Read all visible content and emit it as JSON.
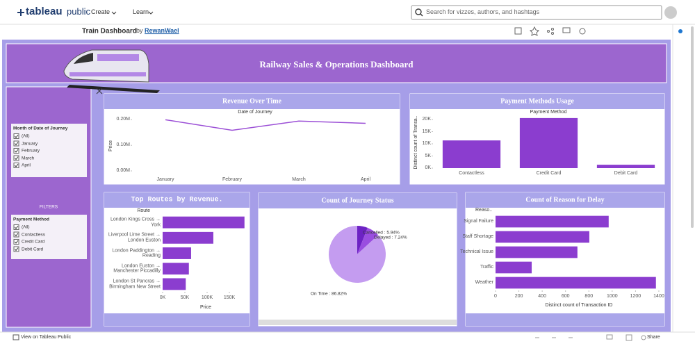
{
  "header": {
    "logo": "tableau",
    "logo_suffix": "public",
    "menu": [
      "Create",
      "Learn"
    ],
    "search_placeholder": "Search for vizzes, authors, and hashtags"
  },
  "viz": {
    "title": "Train Dashboard",
    "by": "by",
    "author": "RewanWael"
  },
  "dashboard": {
    "title": "Railway Sales & Operations Dashboard",
    "filters": {
      "label": "FILTERS",
      "groups": [
        {
          "title": "Month of Date of Journey",
          "items": [
            "(All)",
            "January",
            "February",
            "March",
            "April"
          ]
        },
        {
          "title": "Payment Method",
          "items": [
            "(All)",
            "Contactless",
            "Credit Card",
            "Debit Card"
          ]
        }
      ]
    }
  },
  "chart_data": [
    {
      "type": "line",
      "title": "Revenue Over Time",
      "x_label": "Date of Journey",
      "y_label": "Price",
      "color": "#9b4fd6",
      "categories": [
        "January",
        "February",
        "March",
        "April"
      ],
      "values": [
        200000,
        159000,
        195000,
        186000
      ],
      "ylim": [
        0,
        220000
      ],
      "yticks": [
        {
          "value": 0,
          "label": "0.00M"
        },
        {
          "value": 100000,
          "label": "0.10M"
        },
        {
          "value": 200000,
          "label": "0.20M"
        }
      ]
    },
    {
      "type": "bar",
      "title": "Payment Methods Usage",
      "x_label": "Payment Method",
      "y_label": "Distinct count of Transa..",
      "color": "#8b3dcf",
      "categories": [
        "Contactless",
        "Credit Card",
        "Debit Card"
      ],
      "values": [
        11400,
        20600,
        1400
      ],
      "ylim": [
        0,
        21000
      ],
      "yticks": [
        {
          "value": 0,
          "label": "0K"
        },
        {
          "value": 5000,
          "label": "5K"
        },
        {
          "value": 10000,
          "label": "10K"
        },
        {
          "value": 15000,
          "label": "15K"
        },
        {
          "value": 20000,
          "label": "20K"
        }
      ]
    },
    {
      "type": "bar",
      "horizontal": true,
      "title": "Top Routes by Revenue.",
      "y_label": "Route",
      "x_label": "Price",
      "color": "#8b3dcf",
      "categories": [
        "London Kings Cross → York",
        "Liverpool Lime Street → London Euston",
        "London Paddington → Reading",
        "London Euston → Manchester Piccadilly",
        "London St Pancras → Birmingham New Street"
      ],
      "values": [
        184000,
        114000,
        64000,
        59000,
        52000
      ],
      "xlim": [
        0,
        190000
      ],
      "xticks": [
        {
          "value": 0,
          "label": "0K"
        },
        {
          "value": 50000,
          "label": "50K"
        },
        {
          "value": 100000,
          "label": "100K"
        },
        {
          "value": 150000,
          "label": "150K"
        }
      ]
    },
    {
      "type": "pie",
      "title": "Count of Journey Status",
      "colors": [
        "#6d22c4",
        "#9a4ee0",
        "#c49cf0"
      ],
      "values": [
        5.94,
        7.24,
        86.82
      ],
      "value_labels": [
        "Cancelled : 5.94%",
        "Delayed : 7.24%",
        "On Time : 86.82%"
      ]
    },
    {
      "type": "bar",
      "horizontal": true,
      "title": "Count of Reason for Delay",
      "y_label": "Reaso..",
      "x_label": "Distinct count of Transaction ID",
      "color": "#8b3dcf",
      "categories": [
        "Signal Failure",
        "Staff Shortage",
        "Technical Issue",
        "Traffic",
        "Weather"
      ],
      "values": [
        970,
        804,
        702,
        310,
        1375
      ],
      "xlim": [
        0,
        1430
      ],
      "xticks": [
        0,
        200,
        400,
        600,
        800,
        1000,
        1200,
        1400
      ]
    }
  ],
  "footer": {
    "view": "View on Tableau Public",
    "share": "Share"
  }
}
